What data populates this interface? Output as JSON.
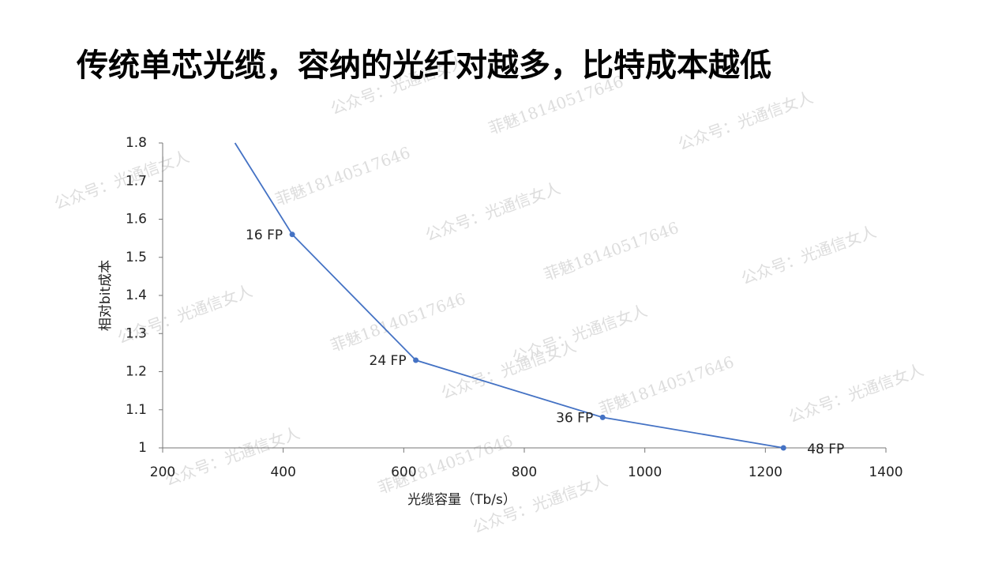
{
  "chart_data": {
    "type": "line",
    "title": "传统单芯光缆，容纳的光纤对越多，比特成本越低",
    "x_label": "光缆容量（Tb/s）",
    "y_label": "相对bit成本",
    "x": [
      320,
      415,
      620,
      930,
      1230
    ],
    "series": [
      {
        "name": "相对bit成本",
        "color": "#4472c4",
        "values": [
          1.8,
          1.56,
          1.23,
          1.08,
          1.0
        ],
        "point_labels": [
          null,
          "16 FP",
          "24 FP",
          "36 FP",
          "48 FP"
        ]
      }
    ],
    "xlim": [
      200,
      1400
    ],
    "xticks": [
      200,
      400,
      600,
      800,
      1000,
      1200,
      1400
    ],
    "ylim": [
      1,
      1.8
    ],
    "yticks": [
      1,
      1.1,
      1.2,
      1.3,
      1.4,
      1.5,
      1.6,
      1.7,
      1.8
    ],
    "grid": false,
    "watermarks": [
      "公众号：光通信女人",
      "菲魅18140517646"
    ]
  }
}
